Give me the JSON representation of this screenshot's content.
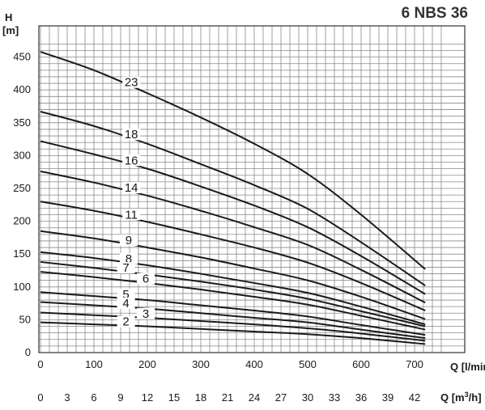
{
  "chart_data": {
    "type": "line",
    "title": "6 NBS 36",
    "ylabel": "H",
    "ylabel_unit": "[m]",
    "xlabel": "Q [l/min]",
    "x2label_prefix": "Q [m",
    "x2label_sup": "3",
    "x2label_suffix": "/h]",
    "xlim": [
      0,
      760
    ],
    "ylim": [
      0,
      475
    ],
    "grid": true,
    "y_ticks": [
      "0",
      "50",
      "100",
      "150",
      "200",
      "250",
      "300",
      "350",
      "400",
      "450"
    ],
    "x_ticks": [
      "0",
      "100",
      "200",
      "300",
      "400",
      "500",
      "600",
      "700"
    ],
    "x2_ticks": [
      "0",
      "3",
      "6",
      "9",
      "12",
      "15",
      "18",
      "21",
      "24",
      "27",
      "30",
      "33",
      "36",
      "39",
      "42"
    ],
    "x": [
      0,
      100,
      200,
      300,
      400,
      500,
      600,
      720
    ],
    "series": [
      {
        "name": "23",
        "values": [
          458,
          430,
          395,
          358,
          318,
          272,
          210,
          127
        ]
      },
      {
        "name": "18",
        "values": [
          367,
          345,
          318,
          287,
          255,
          219,
          168,
          102
        ]
      },
      {
        "name": "16",
        "values": [
          322,
          302,
          280,
          253,
          224,
          191,
          147,
          89
        ]
      },
      {
        "name": "14",
        "values": [
          276,
          259,
          239,
          216,
          191,
          164,
          126,
          76
        ]
      },
      {
        "name": "11",
        "values": [
          230,
          216,
          199,
          180,
          160,
          137,
          106,
          64
        ]
      },
      {
        "name": "9",
        "values": [
          185,
          174,
          160,
          145,
          128,
          110,
          85,
          51
        ]
      },
      {
        "name": "8",
        "values": [
          153,
          144,
          133,
          120,
          106,
          91,
          70,
          43
        ]
      },
      {
        "name": "7",
        "values": [
          138,
          129,
          119,
          108,
          96,
          82,
          63,
          40
        ]
      },
      {
        "name": "6",
        "values": [
          123,
          115,
          106,
          96,
          85,
          73,
          56,
          35
        ]
      },
      {
        "name": "5",
        "values": [
          92,
          86,
          80,
          72,
          64,
          55,
          42,
          27
        ]
      },
      {
        "name": "4",
        "values": [
          77,
          72,
          67,
          60,
          53,
          46,
          35,
          22
        ]
      },
      {
        "name": "3",
        "values": [
          61,
          57,
          53,
          48,
          43,
          37,
          29,
          18
        ]
      },
      {
        "name": "2",
        "values": [
          46,
          43,
          40,
          36,
          32,
          28,
          22,
          13
        ]
      }
    ]
  }
}
